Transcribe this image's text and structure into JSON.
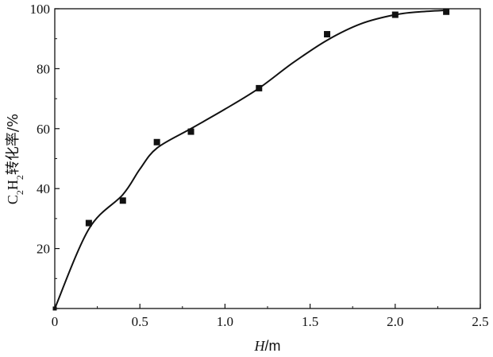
{
  "chart_data": {
    "type": "scatter",
    "title": "",
    "xlabel": "H/m",
    "xlabel_italic": "H",
    "xlabel_unit": "/m",
    "ylabel": "C2H2转化率/%",
    "ylabel_parts": [
      "C",
      "2",
      "H",
      "2",
      "转化率/%"
    ],
    "xlim": [
      0,
      2.5
    ],
    "ylim": [
      0,
      100
    ],
    "xticks": [
      0,
      0.5,
      1.0,
      1.5,
      2.0,
      2.5
    ],
    "xtick_labels": [
      "0",
      "0.5",
      "1.0",
      "1.5",
      "2.0",
      "2.5"
    ],
    "yticks": [
      0,
      20,
      40,
      60,
      80,
      100
    ],
    "ytick_labels": [
      "",
      "20",
      "40",
      "60",
      "80",
      "100"
    ],
    "grid": false,
    "legend": false,
    "marker_color": "#111111",
    "line_color": "#111111",
    "series": [
      {
        "marker": "square",
        "x": [
          0,
          0.2,
          0.4,
          0.6,
          0.8,
          1.2,
          1.6,
          2.0,
          2.3
        ],
        "y": [
          0,
          28.5,
          36,
          55.5,
          59,
          73.5,
          91.5,
          98,
          99
        ]
      }
    ],
    "fit_curve": {
      "x": [
        0,
        0.2,
        0.4,
        0.5,
        0.6,
        0.8,
        1.0,
        1.2,
        1.4,
        1.6,
        1.8,
        2.0,
        2.15,
        2.3
      ],
      "y": [
        0,
        26.5,
        38,
        46.5,
        53.5,
        60,
        66.5,
        73.5,
        82,
        89.5,
        95,
        98,
        99,
        99.5
      ]
    }
  }
}
